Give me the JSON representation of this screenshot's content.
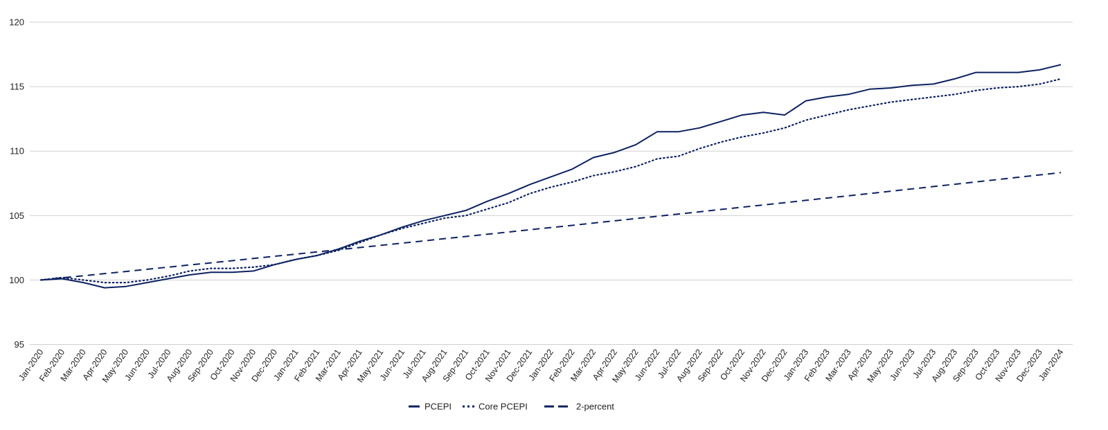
{
  "colors": {
    "series": "#0c2160",
    "grid": "#cfcfcf",
    "text": "#222222"
  },
  "chart_data": {
    "type": "line",
    "title": "",
    "xlabel": "",
    "ylabel": "",
    "ylim": [
      95,
      120
    ],
    "yticks": [
      95,
      100,
      105,
      110,
      115,
      120
    ],
    "grid": "horizontal",
    "legend_position": "bottom",
    "categories": [
      "Jan-2020",
      "Feb-2020",
      "Mar-2020",
      "Apr-2020",
      "May-2020",
      "Jun-2020",
      "Jul-2020",
      "Aug-2020",
      "Sep-2020",
      "Oct-2020",
      "Nov-2020",
      "Dec-2020",
      "Jan-2021",
      "Feb-2021",
      "Mar-2021",
      "Apr-2021",
      "May-2021",
      "Jun-2021",
      "Jul-2021",
      "Aug-2021",
      "Sep-2021",
      "Oct-2021",
      "Nov-2021",
      "Dec-2021",
      "Jan-2022",
      "Feb-2022",
      "Mar-2022",
      "Apr-2022",
      "May-2022",
      "Jun-2022",
      "Jul-2022",
      "Aug-2022",
      "Sep-2022",
      "Oct-2022",
      "Nov-2022",
      "Dec-2022",
      "Jan-2023",
      "Feb-2023",
      "Mar-2023",
      "Apr-2023",
      "May-2023",
      "Jun-2023",
      "Jul-2023",
      "Aug-2023",
      "Sep-2023",
      "Oct-2023",
      "Nov-2023",
      "Dec-2023",
      "Jan-2024"
    ],
    "series": [
      {
        "name": "PCEPI",
        "dash": "solid",
        "values": [
          100.0,
          100.1,
          99.8,
          99.4,
          99.5,
          99.8,
          100.1,
          100.4,
          100.6,
          100.6,
          100.7,
          101.2,
          101.6,
          101.9,
          102.4,
          103.0,
          103.5,
          104.1,
          104.6,
          105.0,
          105.4,
          106.1,
          106.7,
          107.4,
          108.0,
          108.6,
          109.5,
          109.9,
          110.5,
          111.5,
          111.5,
          111.8,
          112.3,
          112.8,
          113.0,
          112.8,
          113.9,
          114.2,
          114.4,
          114.8,
          114.9,
          115.1,
          115.2,
          115.6,
          116.1,
          116.1,
          116.1,
          116.3,
          116.7
        ]
      },
      {
        "name": "Core PCEPI",
        "dash": "dotted",
        "values": [
          100.0,
          100.2,
          100.0,
          99.8,
          99.8,
          100.0,
          100.3,
          100.7,
          100.9,
          100.9,
          101.0,
          101.2,
          101.6,
          101.9,
          102.3,
          102.9,
          103.5,
          104.0,
          104.4,
          104.8,
          105.0,
          105.5,
          106.0,
          106.7,
          107.2,
          107.6,
          108.1,
          108.4,
          108.8,
          109.4,
          109.6,
          110.2,
          110.7,
          111.1,
          111.4,
          111.8,
          112.4,
          112.8,
          113.2,
          113.5,
          113.8,
          114.0,
          114.2,
          114.4,
          114.7,
          114.9,
          115.0,
          115.2,
          115.6
        ]
      },
      {
        "name": "2-percent",
        "dash": "dashed",
        "values": [
          100.0,
          100.17,
          100.33,
          100.5,
          100.66,
          100.83,
          101.0,
          101.17,
          101.33,
          101.5,
          101.67,
          101.84,
          102.01,
          102.18,
          102.35,
          102.52,
          102.69,
          102.86,
          103.03,
          103.21,
          103.38,
          103.55,
          103.72,
          103.9,
          104.07,
          104.24,
          104.42,
          104.59,
          104.77,
          104.94,
          105.12,
          105.29,
          105.47,
          105.65,
          105.82,
          106.0,
          106.18,
          106.36,
          106.53,
          106.71,
          106.89,
          107.07,
          107.25,
          107.43,
          107.61,
          107.79,
          107.97,
          108.15,
          108.33
        ]
      }
    ]
  }
}
